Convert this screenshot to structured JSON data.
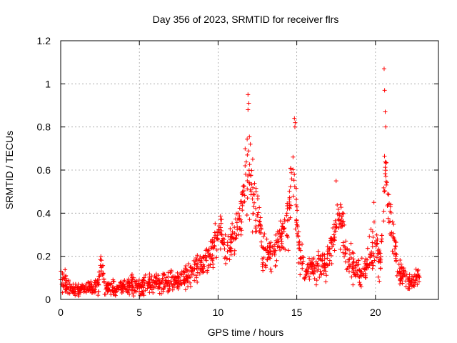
{
  "chart_data": {
    "type": "scatter",
    "title": "Day 356 of 2023, SRMTID for receiver flrs",
    "xlabel": "GPS time / hours",
    "ylabel": "SRMTID / TECUs",
    "xlim": [
      0,
      24
    ],
    "ylim": [
      0,
      1.2
    ],
    "x_ticks": [
      0,
      5,
      10,
      15,
      20
    ],
    "x_tick_labels": [
      "0",
      "5",
      "10",
      "15",
      "20"
    ],
    "y_ticks": [
      0,
      0.2,
      0.4,
      0.6,
      0.8,
      1,
      1.2
    ],
    "y_tick_labels": [
      "0",
      "0.2",
      "0.4",
      "0.6",
      "0.8",
      "1",
      "1.2"
    ],
    "grid": true,
    "marker": "+",
    "series": [
      {
        "name": "SRMTID",
        "color": "#ff0000",
        "envelope": [
          [
            0.0,
            0.07,
            0.05
          ],
          [
            0.3,
            0.08,
            0.05
          ],
          [
            0.6,
            0.05,
            0.03
          ],
          [
            1.0,
            0.04,
            0.03
          ],
          [
            1.5,
            0.05,
            0.03
          ],
          [
            2.0,
            0.05,
            0.03
          ],
          [
            2.4,
            0.06,
            0.03
          ],
          [
            2.55,
            0.18,
            0.05
          ],
          [
            2.8,
            0.06,
            0.03
          ],
          [
            3.5,
            0.05,
            0.03
          ],
          [
            4.0,
            0.06,
            0.03
          ],
          [
            4.5,
            0.07,
            0.04
          ],
          [
            5.0,
            0.06,
            0.03
          ],
          [
            5.5,
            0.07,
            0.04
          ],
          [
            6.0,
            0.08,
            0.04
          ],
          [
            6.5,
            0.08,
            0.04
          ],
          [
            7.0,
            0.08,
            0.04
          ],
          [
            7.5,
            0.09,
            0.04
          ],
          [
            8.0,
            0.1,
            0.05
          ],
          [
            8.5,
            0.14,
            0.05
          ],
          [
            9.0,
            0.18,
            0.05
          ],
          [
            9.5,
            0.2,
            0.06
          ],
          [
            9.9,
            0.28,
            0.08
          ],
          [
            10.1,
            0.33,
            0.08
          ],
          [
            10.5,
            0.22,
            0.08
          ],
          [
            11.0,
            0.28,
            0.08
          ],
          [
            11.5,
            0.4,
            0.12
          ],
          [
            11.9,
            0.6,
            0.18
          ],
          [
            12.2,
            0.42,
            0.12
          ],
          [
            12.5,
            0.45,
            0.12
          ],
          [
            12.8,
            0.25,
            0.1
          ],
          [
            13.2,
            0.2,
            0.06
          ],
          [
            13.6,
            0.22,
            0.08
          ],
          [
            14.0,
            0.3,
            0.1
          ],
          [
            14.5,
            0.4,
            0.12
          ],
          [
            14.8,
            0.6,
            0.16
          ],
          [
            15.1,
            0.25,
            0.08
          ],
          [
            15.5,
            0.12,
            0.05
          ],
          [
            16.0,
            0.15,
            0.06
          ],
          [
            16.5,
            0.15,
            0.06
          ],
          [
            17.0,
            0.18,
            0.06
          ],
          [
            17.4,
            0.3,
            0.1
          ],
          [
            17.6,
            0.4,
            0.12
          ],
          [
            17.9,
            0.35,
            0.1
          ],
          [
            18.2,
            0.2,
            0.08
          ],
          [
            18.6,
            0.15,
            0.06
          ],
          [
            19.0,
            0.12,
            0.05
          ],
          [
            19.4,
            0.15,
            0.06
          ],
          [
            19.7,
            0.2,
            0.08
          ],
          [
            20.0,
            0.3,
            0.1
          ],
          [
            20.3,
            0.15,
            0.06
          ],
          [
            20.5,
            0.4,
            0.1
          ],
          [
            20.6,
            0.62,
            0.08
          ],
          [
            20.8,
            0.45,
            0.1
          ],
          [
            21.0,
            0.35,
            0.1
          ],
          [
            21.3,
            0.2,
            0.08
          ],
          [
            21.6,
            0.12,
            0.05
          ],
          [
            22.0,
            0.09,
            0.04
          ],
          [
            22.3,
            0.07,
            0.03
          ],
          [
            22.6,
            0.1,
            0.04
          ],
          [
            22.8,
            0.12,
            0.04
          ]
        ],
        "outliers": [
          [
            20.55,
            1.07
          ],
          [
            20.58,
            0.97
          ],
          [
            20.62,
            0.87
          ],
          [
            11.9,
            0.95
          ],
          [
            11.95,
            0.91
          ],
          [
            11.9,
            0.88
          ],
          [
            14.85,
            0.84
          ],
          [
            14.9,
            0.82
          ],
          [
            14.88,
            0.8
          ],
          [
            12.2,
            0.65
          ],
          [
            20.65,
            0.8
          ],
          [
            12.05,
            0.72
          ],
          [
            17.5,
            0.55
          ],
          [
            19.9,
            0.45
          ]
        ]
      }
    ]
  }
}
